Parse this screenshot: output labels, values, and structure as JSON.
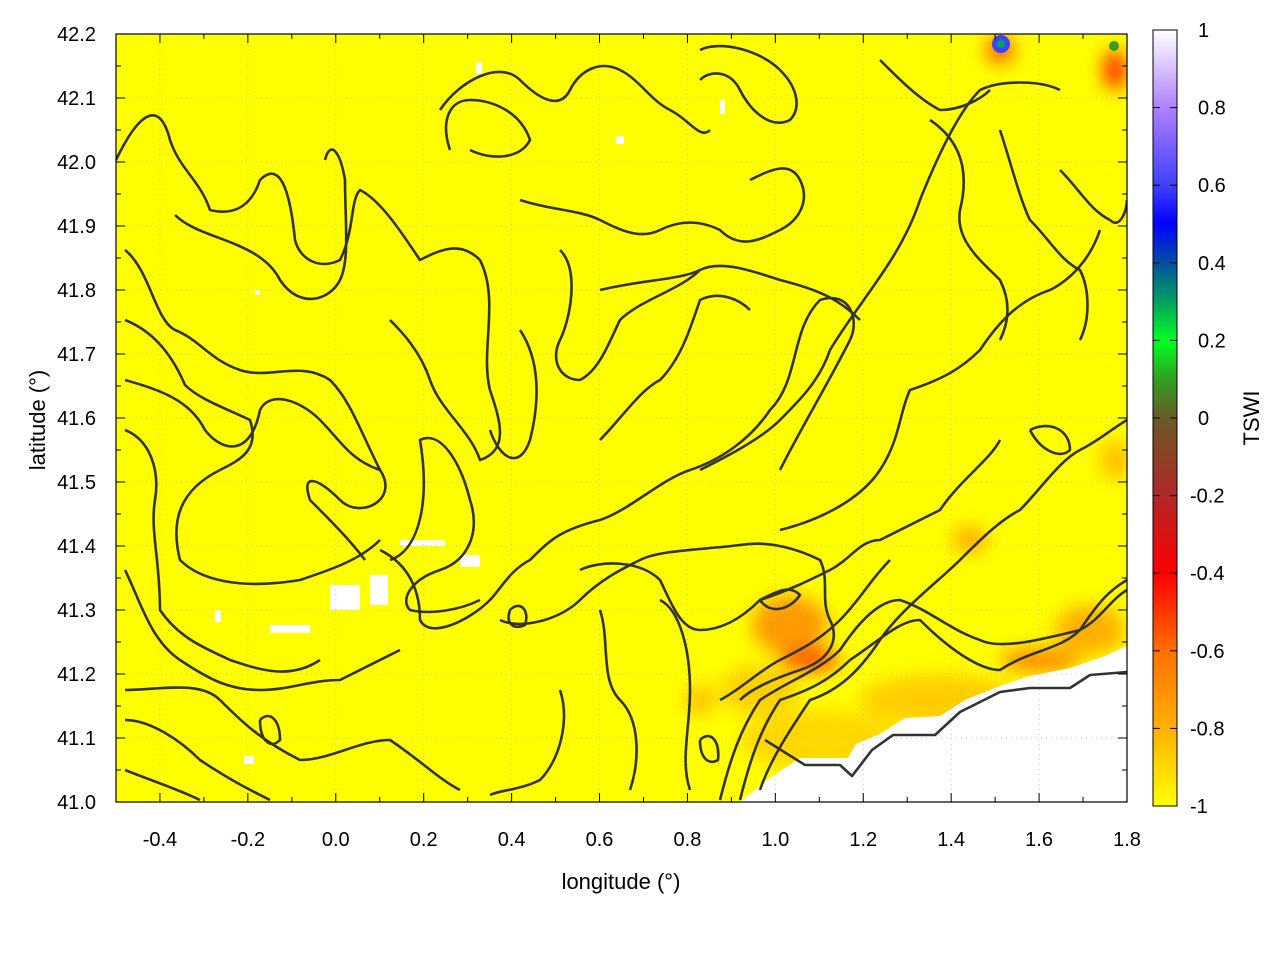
{
  "chart_data": {
    "type": "heatmap",
    "title": "",
    "xlabel": "longitude (°)",
    "ylabel": "latitude (°)",
    "xlim": [
      -0.5,
      1.8
    ],
    "ylim": [
      41.0,
      42.2
    ],
    "xticks": [
      "-0.4",
      "-0.2",
      "0.0",
      "0.2",
      "0.4",
      "0.6",
      "0.8",
      "1.0",
      "1.2",
      "1.4",
      "1.6",
      "1.8"
    ],
    "xtick_values": [
      -0.4,
      -0.2,
      0.0,
      0.2,
      0.4,
      0.6,
      0.8,
      1.0,
      1.2,
      1.4,
      1.6,
      1.8
    ],
    "yticks": [
      "41.0",
      "41.1",
      "41.2",
      "41.3",
      "41.4",
      "41.5",
      "41.6",
      "41.7",
      "41.8",
      "41.9",
      "42.0",
      "42.1",
      "42.2"
    ],
    "ytick_values": [
      41.0,
      41.1,
      41.2,
      41.3,
      41.4,
      41.5,
      41.6,
      41.7,
      41.8,
      41.9,
      42.0,
      42.1,
      42.2
    ],
    "grid": true,
    "overlay": "elevation contour lines",
    "colorbar": {
      "label": "TSWI",
      "range": [
        -1,
        1
      ],
      "ticks": [
        "1",
        "0.8",
        "0.6",
        "0.4",
        "0.2",
        "0",
        "-0.2",
        "-0.4",
        "-0.6",
        "-0.8",
        "-1"
      ],
      "tick_values": [
        1,
        0.8,
        0.6,
        0.4,
        0.2,
        0,
        -0.2,
        -0.4,
        -0.6,
        -0.8,
        -1
      ],
      "stops": [
        {
          "value": -1,
          "color": "#ffff00"
        },
        {
          "value": -0.8,
          "color": "#ffb000"
        },
        {
          "value": -0.6,
          "color": "#ff7000"
        },
        {
          "value": -0.4,
          "color": "#ff0000"
        },
        {
          "value": -0.2,
          "color": "#b02828"
        },
        {
          "value": 0,
          "color": "#6a5a28"
        },
        {
          "value": 0.1,
          "color": "#30a020"
        },
        {
          "value": 0.2,
          "color": "#00ff20"
        },
        {
          "value": 0.3,
          "color": "#00a060"
        },
        {
          "value": 0.4,
          "color": "#0050a0"
        },
        {
          "value": 0.5,
          "color": "#0000ff"
        },
        {
          "value": 0.6,
          "color": "#4040ff"
        },
        {
          "value": 0.8,
          "color": "#b080ff"
        },
        {
          "value": 1,
          "color": "#ffffff"
        }
      ]
    },
    "dominant_value": -1,
    "notes_visible": []
  }
}
